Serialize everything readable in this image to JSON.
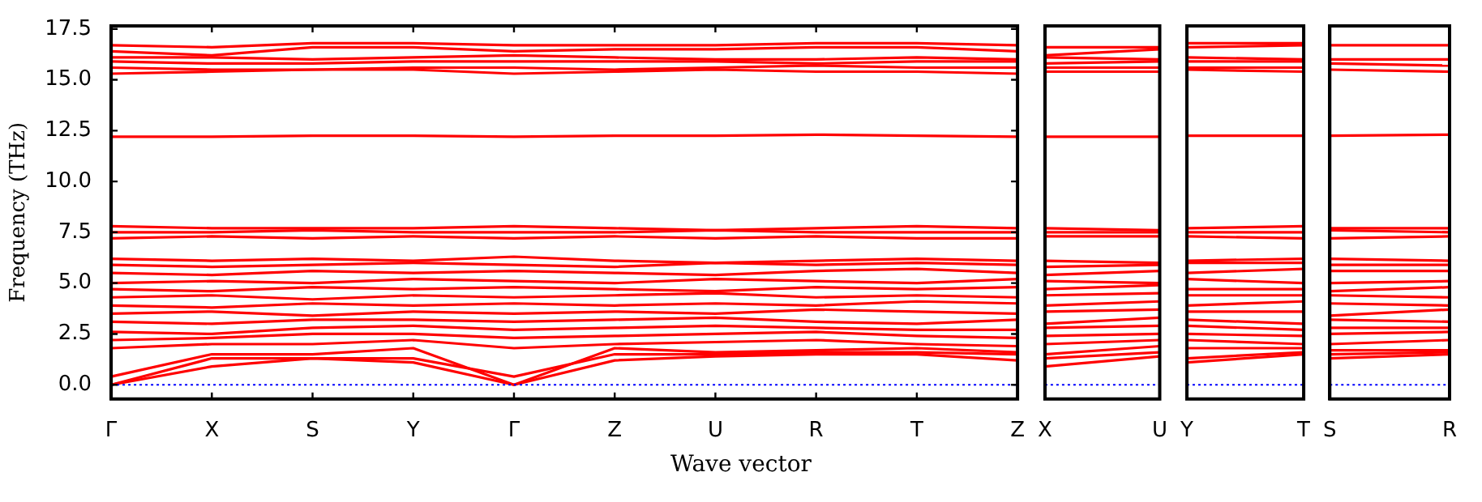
{
  "chart_data": [
    {
      "type": "line",
      "ylabel": "Frequency (THz)",
      "xlabel": "Wave vector",
      "marker": "none",
      "legend": false,
      "categories": [
        "Γ",
        "X",
        "S",
        "Y",
        "Γ",
        "Z",
        "U",
        "R",
        "T",
        "Z"
      ],
      "ylim": [
        -0.7,
        17.65
      ],
      "yticks": [
        {
          "value": 0,
          "label": "0.0"
        },
        {
          "value": 2.5,
          "label": "2.5"
        },
        {
          "value": 5,
          "label": "5.0"
        },
        {
          "value": 7.5,
          "label": "7.5"
        },
        {
          "value": 10,
          "label": "10.0"
        },
        {
          "value": 12.5,
          "label": "12.5"
        },
        {
          "value": 15,
          "label": "15.0"
        },
        {
          "value": 17.5,
          "label": "17.5"
        }
      ],
      "ref_lines": [
        {
          "axis": "y",
          "value": 0,
          "color": "#0000ff",
          "line_style": "dotted"
        }
      ],
      "series": [
        {
          "color": "#ff0000",
          "values": [
            0,
            0.9,
            1.3,
            1.1,
            0,
            1.2,
            1.4,
            1.5,
            1.5,
            1.2
          ]
        },
        {
          "color": "#ff0000",
          "values": [
            0,
            1.3,
            1.3,
            1.3,
            0.4,
            1.5,
            1.5,
            1.6,
            1.6,
            1.5
          ]
        },
        {
          "color": "#ff0000",
          "values": [
            0.4,
            1.5,
            1.5,
            1.8,
            0,
            1.8,
            1.6,
            1.7,
            1.8,
            1.6
          ]
        },
        {
          "color": "#ff0000",
          "values": [
            1.8,
            2.0,
            2.0,
            2.2,
            1.8,
            2.0,
            2.1,
            2.2,
            2.0,
            1.9
          ]
        },
        {
          "color": "#ff0000",
          "values": [
            2.2,
            2.3,
            2.5,
            2.5,
            2.3,
            2.4,
            2.5,
            2.6,
            2.4,
            2.3
          ]
        },
        {
          "color": "#ff0000",
          "values": [
            2.6,
            2.5,
            2.8,
            2.9,
            2.7,
            2.8,
            2.9,
            2.8,
            2.7,
            2.7
          ]
        },
        {
          "color": "#ff0000",
          "values": [
            3.1,
            3.0,
            3.2,
            3.2,
            3.1,
            3.2,
            3.3,
            3.1,
            3.0,
            3.2
          ]
        },
        {
          "color": "#ff0000",
          "values": [
            3.5,
            3.6,
            3.4,
            3.6,
            3.5,
            3.6,
            3.5,
            3.7,
            3.6,
            3.5
          ]
        },
        {
          "color": "#ff0000",
          "values": [
            3.9,
            3.8,
            4.0,
            3.9,
            4.0,
            3.9,
            4.0,
            3.9,
            4.1,
            4.0
          ]
        },
        {
          "color": "#ff0000",
          "values": [
            4.3,
            4.4,
            4.2,
            4.4,
            4.3,
            4.4,
            4.5,
            4.3,
            4.4,
            4.3
          ]
        },
        {
          "color": "#ff0000",
          "values": [
            4.7,
            4.6,
            4.8,
            4.7,
            4.8,
            4.7,
            4.6,
            4.8,
            4.7,
            4.8
          ]
        },
        {
          "color": "#ff0000",
          "values": [
            5.0,
            5.1,
            5.0,
            5.2,
            5.1,
            5.0,
            5.2,
            5.1,
            5.0,
            5.2
          ]
        },
        {
          "color": "#ff0000",
          "values": [
            5.5,
            5.4,
            5.6,
            5.5,
            5.6,
            5.5,
            5.4,
            5.6,
            5.7,
            5.5
          ]
        },
        {
          "color": "#ff0000",
          "values": [
            5.9,
            5.8,
            5.9,
            6.0,
            5.9,
            5.8,
            6.0,
            5.9,
            6.0,
            5.9
          ]
        },
        {
          "color": "#ff0000",
          "values": [
            6.2,
            6.1,
            6.2,
            6.1,
            6.3,
            6.1,
            6.0,
            6.1,
            6.2,
            6.1
          ]
        },
        {
          "color": "#ff0000",
          "values": [
            7.2,
            7.3,
            7.2,
            7.3,
            7.2,
            7.3,
            7.2,
            7.3,
            7.2,
            7.2
          ]
        },
        {
          "color": "#ff0000",
          "values": [
            7.5,
            7.5,
            7.6,
            7.5,
            7.5,
            7.5,
            7.6,
            7.5,
            7.5,
            7.5
          ]
        },
        {
          "color": "#ff0000",
          "values": [
            7.8,
            7.7,
            7.7,
            7.7,
            7.8,
            7.7,
            7.6,
            7.7,
            7.8,
            7.7
          ]
        },
        {
          "color": "#ff0000",
          "values": [
            12.2,
            12.2,
            12.25,
            12.25,
            12.2,
            12.25,
            12.25,
            12.3,
            12.25,
            12.2
          ]
        },
        {
          "color": "#ff0000",
          "values": [
            15.3,
            15.4,
            15.5,
            15.5,
            15.3,
            15.4,
            15.5,
            15.4,
            15.4,
            15.3
          ]
        },
        {
          "color": "#ff0000",
          "values": [
            15.6,
            15.5,
            15.5,
            15.6,
            15.6,
            15.5,
            15.6,
            15.7,
            15.6,
            15.6
          ]
        },
        {
          "color": "#ff0000",
          "values": [
            15.9,
            15.8,
            15.8,
            15.9,
            15.9,
            15.9,
            15.9,
            15.8,
            15.9,
            15.9
          ]
        },
        {
          "color": "#ff0000",
          "values": [
            16.1,
            16.1,
            16.0,
            16.1,
            16.2,
            16.1,
            16.0,
            16.0,
            16.1,
            16.0
          ]
        },
        {
          "color": "#ff0000",
          "values": [
            16.4,
            16.2,
            16.6,
            16.6,
            16.4,
            16.5,
            16.5,
            16.6,
            16.6,
            16.4
          ]
        },
        {
          "color": "#ff0000",
          "values": [
            16.7,
            16.6,
            16.8,
            16.8,
            16.7,
            16.7,
            16.7,
            16.8,
            16.8,
            16.7
          ]
        }
      ]
    },
    {
      "type": "line",
      "marker": "none",
      "legend": false,
      "tick_labels": "x",
      "categories": [
        "X",
        "U"
      ],
      "ylim": [
        -0.7,
        17.65
      ],
      "ref_lines": [
        {
          "axis": "y",
          "value": 0,
          "color": "#0000ff",
          "line_style": "dotted"
        }
      ],
      "series": [
        {
          "color": "#ff0000",
          "values": [
            0.9,
            1.4
          ]
        },
        {
          "color": "#ff0000",
          "values": [
            1.3,
            1.6
          ]
        },
        {
          "color": "#ff0000",
          "values": [
            1.5,
            1.9
          ]
        },
        {
          "color": "#ff0000",
          "values": [
            2.0,
            2.2
          ]
        },
        {
          "color": "#ff0000",
          "values": [
            2.4,
            2.5
          ]
        },
        {
          "color": "#ff0000",
          "values": [
            2.8,
            2.9
          ]
        },
        {
          "color": "#ff0000",
          "values": [
            3.0,
            3.3
          ]
        },
        {
          "color": "#ff0000",
          "values": [
            3.6,
            3.7
          ]
        },
        {
          "color": "#ff0000",
          "values": [
            3.9,
            4.1
          ]
        },
        {
          "color": "#ff0000",
          "values": [
            4.4,
            4.5
          ]
        },
        {
          "color": "#ff0000",
          "values": [
            4.7,
            4.9
          ]
        },
        {
          "color": "#ff0000",
          "values": [
            5.1,
            5.0
          ]
        },
        {
          "color": "#ff0000",
          "values": [
            5.4,
            5.6
          ]
        },
        {
          "color": "#ff0000",
          "values": [
            5.8,
            5.9
          ]
        },
        {
          "color": "#ff0000",
          "values": [
            6.1,
            6.0
          ]
        },
        {
          "color": "#ff0000",
          "values": [
            7.3,
            7.3
          ]
        },
        {
          "color": "#ff0000",
          "values": [
            7.5,
            7.5
          ]
        },
        {
          "color": "#ff0000",
          "values": [
            7.7,
            7.6
          ]
        },
        {
          "color": "#ff0000",
          "values": [
            12.2,
            12.2
          ]
        },
        {
          "color": "#ff0000",
          "values": [
            15.4,
            15.4
          ]
        },
        {
          "color": "#ff0000",
          "values": [
            15.6,
            15.6
          ]
        },
        {
          "color": "#ff0000",
          "values": [
            15.8,
            15.9
          ]
        },
        {
          "color": "#ff0000",
          "values": [
            16.1,
            16.0
          ]
        },
        {
          "color": "#ff0000",
          "values": [
            16.2,
            16.5
          ]
        },
        {
          "color": "#ff0000",
          "values": [
            16.6,
            16.6
          ]
        }
      ]
    },
    {
      "type": "line",
      "marker": "none",
      "legend": false,
      "tick_labels": "x",
      "categories": [
        "Y",
        "T"
      ],
      "ylim": [
        -0.7,
        17.65
      ],
      "ref_lines": [
        {
          "axis": "y",
          "value": 0,
          "color": "#0000ff",
          "line_style": "dotted"
        }
      ],
      "series": [
        {
          "color": "#ff0000",
          "values": [
            1.1,
            1.5
          ]
        },
        {
          "color": "#ff0000",
          "values": [
            1.3,
            1.6
          ]
        },
        {
          "color": "#ff0000",
          "values": [
            1.8,
            1.8
          ]
        },
        {
          "color": "#ff0000",
          "values": [
            2.2,
            2.0
          ]
        },
        {
          "color": "#ff0000",
          "values": [
            2.5,
            2.4
          ]
        },
        {
          "color": "#ff0000",
          "values": [
            2.9,
            2.7
          ]
        },
        {
          "color": "#ff0000",
          "values": [
            3.2,
            3.0
          ]
        },
        {
          "color": "#ff0000",
          "values": [
            3.6,
            3.6
          ]
        },
        {
          "color": "#ff0000",
          "values": [
            3.9,
            4.1
          ]
        },
        {
          "color": "#ff0000",
          "values": [
            4.4,
            4.4
          ]
        },
        {
          "color": "#ff0000",
          "values": [
            4.7,
            4.7
          ]
        },
        {
          "color": "#ff0000",
          "values": [
            5.2,
            5.0
          ]
        },
        {
          "color": "#ff0000",
          "values": [
            5.5,
            5.7
          ]
        },
        {
          "color": "#ff0000",
          "values": [
            6.0,
            6.0
          ]
        },
        {
          "color": "#ff0000",
          "values": [
            6.1,
            6.2
          ]
        },
        {
          "color": "#ff0000",
          "values": [
            7.3,
            7.2
          ]
        },
        {
          "color": "#ff0000",
          "values": [
            7.5,
            7.5
          ]
        },
        {
          "color": "#ff0000",
          "values": [
            7.7,
            7.8
          ]
        },
        {
          "color": "#ff0000",
          "values": [
            12.25,
            12.25
          ]
        },
        {
          "color": "#ff0000",
          "values": [
            15.5,
            15.4
          ]
        },
        {
          "color": "#ff0000",
          "values": [
            15.6,
            15.6
          ]
        },
        {
          "color": "#ff0000",
          "values": [
            15.9,
            15.9
          ]
        },
        {
          "color": "#ff0000",
          "values": [
            16.1,
            16.0
          ]
        },
        {
          "color": "#ff0000",
          "values": [
            16.6,
            16.7
          ]
        },
        {
          "color": "#ff0000",
          "values": [
            16.8,
            16.8
          ]
        }
      ]
    },
    {
      "type": "line",
      "marker": "none",
      "legend": false,
      "tick_labels": "x",
      "categories": [
        "S",
        "R"
      ],
      "ylim": [
        -0.7,
        17.65
      ],
      "ref_lines": [
        {
          "axis": "y",
          "value": 0,
          "color": "#0000ff",
          "line_style": "dotted"
        }
      ],
      "series": [
        {
          "color": "#ff0000",
          "values": [
            1.3,
            1.5
          ]
        },
        {
          "color": "#ff0000",
          "values": [
            1.5,
            1.6
          ]
        },
        {
          "color": "#ff0000",
          "values": [
            1.7,
            1.7
          ]
        },
        {
          "color": "#ff0000",
          "values": [
            2.0,
            2.2
          ]
        },
        {
          "color": "#ff0000",
          "values": [
            2.5,
            2.6
          ]
        },
        {
          "color": "#ff0000",
          "values": [
            2.8,
            2.8
          ]
        },
        {
          "color": "#ff0000",
          "values": [
            3.2,
            3.1
          ]
        },
        {
          "color": "#ff0000",
          "values": [
            3.4,
            3.7
          ]
        },
        {
          "color": "#ff0000",
          "values": [
            4.0,
            3.9
          ]
        },
        {
          "color": "#ff0000",
          "values": [
            4.4,
            4.3
          ]
        },
        {
          "color": "#ff0000",
          "values": [
            4.6,
            4.8
          ]
        },
        {
          "color": "#ff0000",
          "values": [
            5.0,
            5.1
          ]
        },
        {
          "color": "#ff0000",
          "values": [
            5.6,
            5.6
          ]
        },
        {
          "color": "#ff0000",
          "values": [
            5.9,
            5.9
          ]
        },
        {
          "color": "#ff0000",
          "values": [
            6.2,
            6.1
          ]
        },
        {
          "color": "#ff0000",
          "values": [
            7.2,
            7.3
          ]
        },
        {
          "color": "#ff0000",
          "values": [
            7.6,
            7.5
          ]
        },
        {
          "color": "#ff0000",
          "values": [
            7.7,
            7.7
          ]
        },
        {
          "color": "#ff0000",
          "values": [
            12.25,
            12.3
          ]
        },
        {
          "color": "#ff0000",
          "values": [
            15.5,
            15.4
          ]
        },
        {
          "color": "#ff0000",
          "values": [
            15.8,
            15.7
          ]
        },
        {
          "color": "#ff0000",
          "values": [
            16.0,
            16.0
          ]
        },
        {
          "color": "#ff0000",
          "values": [
            16.7,
            16.7
          ]
        }
      ]
    }
  ]
}
